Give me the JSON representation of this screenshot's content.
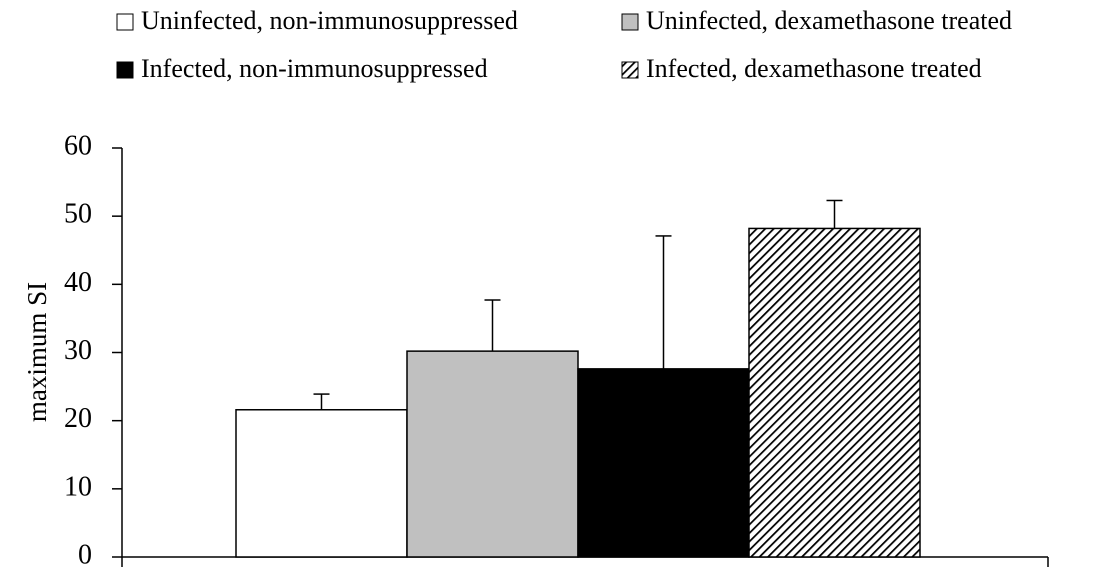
{
  "chart_data": {
    "type": "bar",
    "ylabel": "maximum SI",
    "series": [
      {
        "name": "Uninfected, non-immunosuppressed",
        "color": "#ffffff",
        "values": [
          21.6
        ],
        "errors": [
          2.3
        ]
      },
      {
        "name": "Uninfected, dexamethasone treated",
        "color": "#c0c0c0",
        "values": [
          30.2
        ],
        "errors": [
          7.5
        ]
      },
      {
        "name": "Infected, non-immunosuppressed",
        "color": "#000000",
        "values": [
          27.6
        ],
        "errors": [
          19.5
        ]
      },
      {
        "name": "Infected, dexamethasone treated",
        "color": "#000000",
        "pattern": "hatch",
        "values": [
          48.2
        ],
        "errors": [
          4.1
        ]
      }
    ],
    "ylim": [
      0,
      60
    ],
    "yticks": [
      0,
      10,
      20,
      30,
      40,
      50,
      60
    ],
    "grid": false,
    "legend": "top"
  }
}
